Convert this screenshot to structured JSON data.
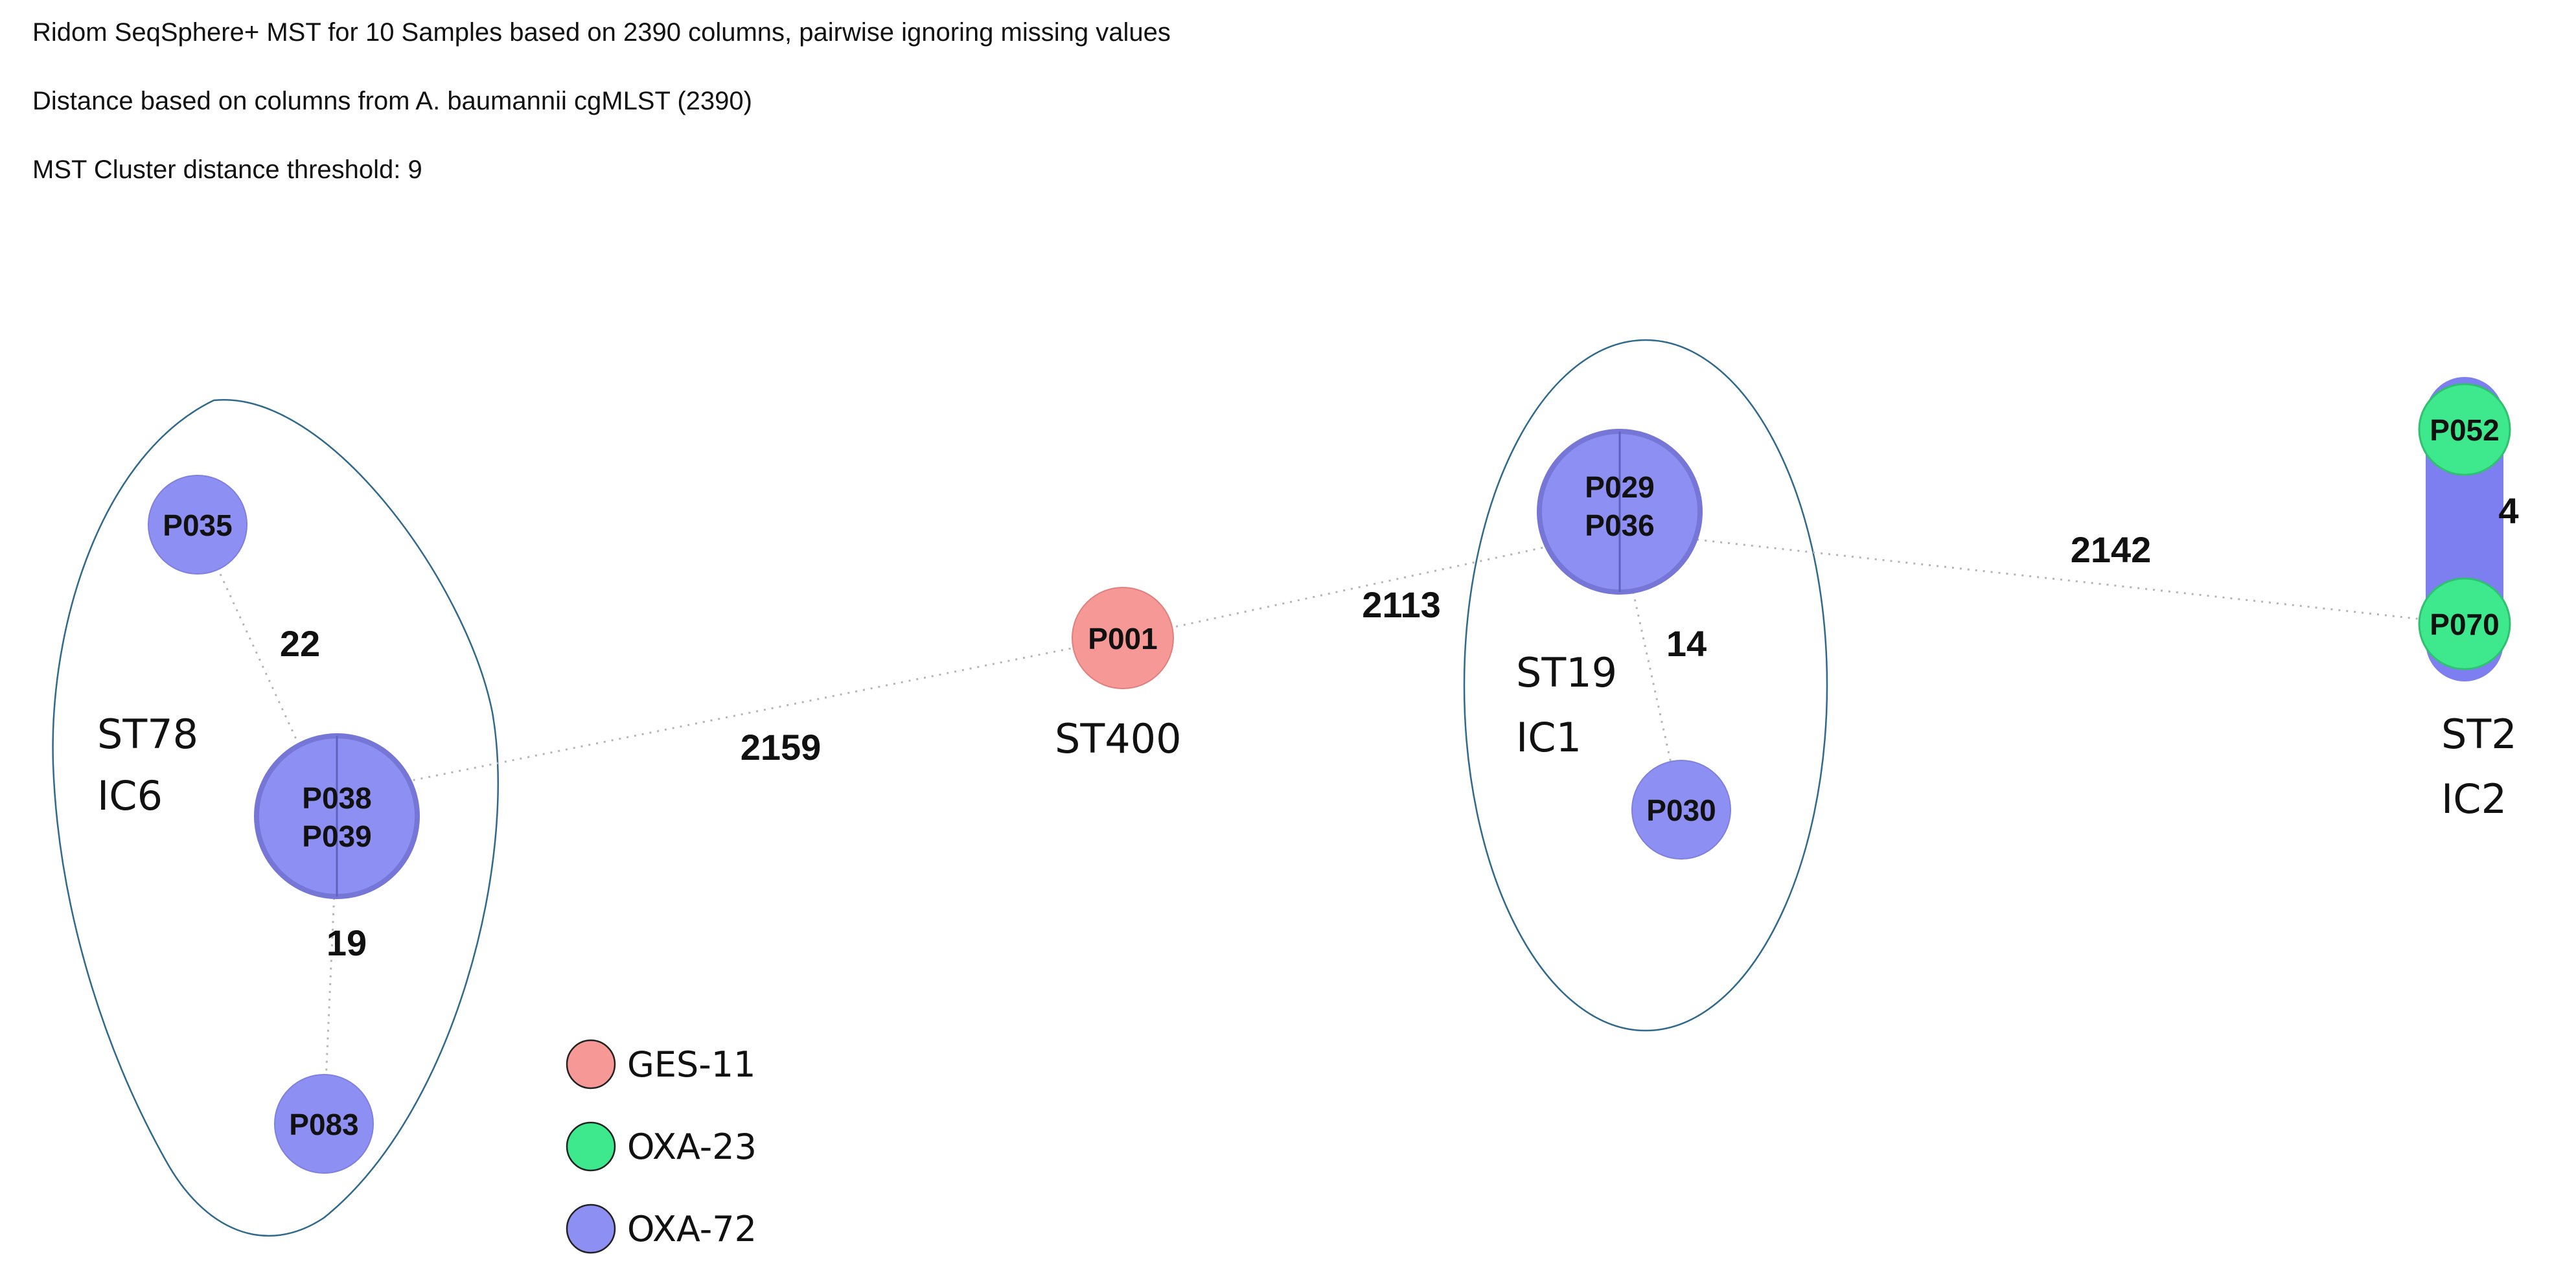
{
  "header": {
    "line1": "Ridom SeqSphere+ MST for 10 Samples based on 2390 columns, pairwise ignoring missing values",
    "line2": "Distance based on columns from A. baumannii cgMLST (2390)",
    "line3": "MST Cluster distance threshold: 9"
  },
  "colors": {
    "ges11": "#f69896",
    "oxa23": "#3ee88d",
    "oxa72": "#8e8ff2",
    "cluster_outline": "#2f6a8c",
    "edge": "#b5b5b5"
  },
  "nodes": {
    "p035": "P035",
    "p038": "P038",
    "p039": "P039",
    "p083": "P083",
    "p001": "P001",
    "p029": "P029",
    "p036": "P036",
    "p030": "P030",
    "p052": "P052",
    "p070": "P070"
  },
  "edges": {
    "p035_p038": "22",
    "p038_p083": "19",
    "p038_p001": "2159",
    "p001_p029": "2113",
    "p029_p030": "14",
    "p029_p070": "2142",
    "p052_p070": "4"
  },
  "groups": {
    "st78": "ST78",
    "ic6": "IC6",
    "st400": "ST400",
    "st19": "ST19",
    "ic1": "IC1",
    "st2": "ST2",
    "ic2": "IC2"
  },
  "legend": {
    "ges11": "GES-11",
    "oxa23": "OXA-23",
    "oxa72": "OXA-72"
  }
}
